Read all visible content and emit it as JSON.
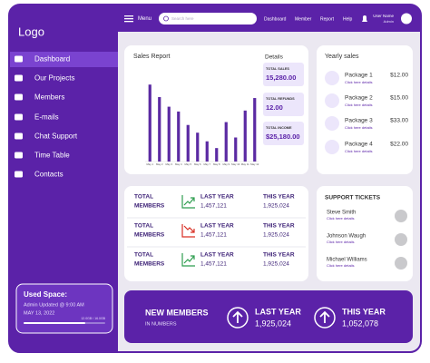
{
  "sidebar": {
    "logo": "Logo",
    "menu": [
      "Dashboard",
      "Our Projects",
      "Members",
      "E-mails",
      "Chat Support",
      "Time Table",
      "Contacts"
    ],
    "used_space": {
      "title": "Used Space:",
      "note": "Admin Updated @ 9:00 AM",
      "date": "MAY 13, 2022",
      "progress_label": "12.0GB / 16.0GB"
    }
  },
  "topbar": {
    "menu_label": "Menu",
    "search_placeholder": "Search here",
    "links": [
      "Dashboard",
      "Member",
      "Report",
      "Help"
    ],
    "user_name": "User Name",
    "user_role": "Admin"
  },
  "chart_data": {
    "type": "bar",
    "title": "Sales Report",
    "categories": [
      "May 1",
      "May 2",
      "May 3",
      "May 4",
      "May 5",
      "May 6",
      "May 7",
      "May 8",
      "May 9",
      "May 10",
      "May 11",
      "May 12"
    ],
    "values": [
      80,
      67,
      57,
      52,
      38,
      30,
      21,
      14,
      41,
      25,
      53,
      66
    ],
    "color": "#5b2aa3",
    "ylim": [
      0,
      100
    ]
  },
  "details": {
    "title": "Details",
    "items": [
      {
        "label": "TOTAL SALES",
        "value": "15,280.00"
      },
      {
        "label": "TOTAL REFUNDS",
        "value": "12.00"
      },
      {
        "label": "TOTAL INCOME",
        "value": "$25,180.00"
      }
    ]
  },
  "yearly_sales": {
    "title": "Yearly sales",
    "items": [
      {
        "name": "Package 1",
        "price": "$12.00",
        "link": "Click here details"
      },
      {
        "name": "Package 2",
        "price": "$15.00",
        "link": "Click here details"
      },
      {
        "name": "Package 3",
        "price": "$33.00",
        "link": "Click here details"
      },
      {
        "name": "Package 4",
        "price": "$22.00",
        "link": "Click here details"
      }
    ]
  },
  "stats": [
    {
      "label": [
        "TOTAL",
        "MEMBERS"
      ],
      "trend": "up",
      "last_label": "LAST YEAR",
      "last_value": "1,457,121",
      "this_label": "THIS YEAR",
      "this_value": "1,925,024"
    },
    {
      "label": [
        "TOTAL",
        "MEMBERS"
      ],
      "trend": "down",
      "last_label": "LAST YEAR",
      "last_value": "1,457,121",
      "this_label": "THIS YEAR",
      "this_value": "1,925,024"
    },
    {
      "label": [
        "TOTAL",
        "MEMBERS"
      ],
      "trend": "up",
      "last_label": "LAST YEAR",
      "last_value": "1,457,121",
      "this_label": "THIS YEAR",
      "this_value": "1,925,024"
    }
  ],
  "support": {
    "title": "SUPPORT TICKETS",
    "items": [
      {
        "name": "Steve Smith",
        "link": "Click here details"
      },
      {
        "name": "Johnson Waugh",
        "link": "Click here details"
      },
      {
        "name": "Michael Williams",
        "link": "Click here details"
      }
    ]
  },
  "new_members": {
    "title": "NEW MEMBERS",
    "subtitle": "IN NUMBERS",
    "last_label": "LAST YEAR",
    "last_value": "1,925,024",
    "this_label": "THIS YEAR",
    "this_value": "1,052,078"
  }
}
